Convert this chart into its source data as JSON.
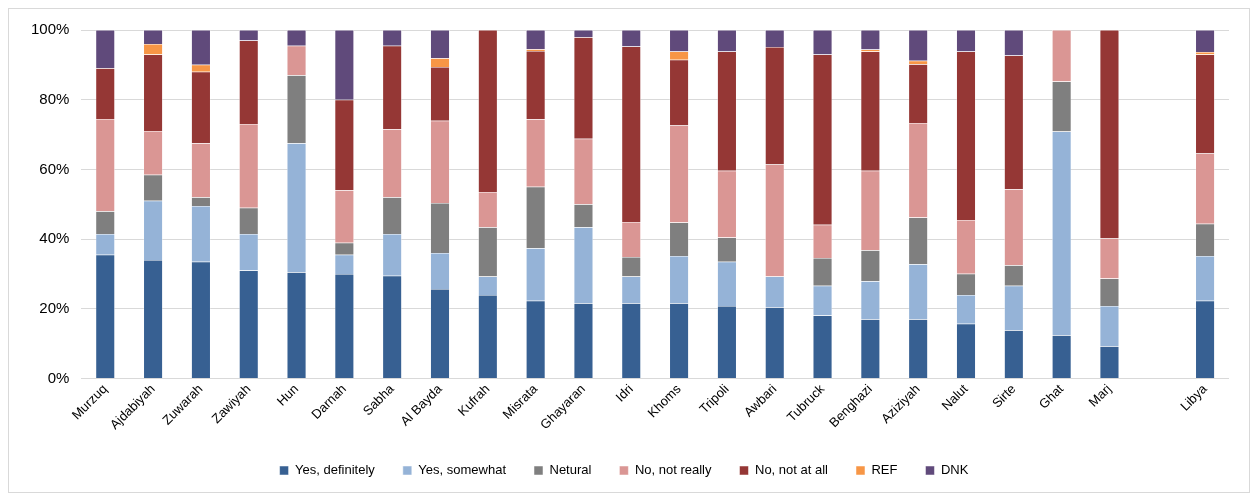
{
  "chart_data": {
    "type": "bar",
    "stacked": true,
    "categories": [
      "Murzuq",
      "Ajdabiyah",
      "Zuwarah",
      "Zawiyah",
      "Hun",
      "Darnah",
      "Sabha",
      "Al Bayda",
      "Kufrah",
      "Misrata",
      "Ghayaran",
      "Idri",
      "Khoms",
      "Tripoli",
      "Awbari",
      "Tubruck",
      "Benghazi",
      "Aziziyah",
      "Nalut",
      "Sirte",
      "Ghat",
      "Marj",
      null,
      "Libya"
    ],
    "series": [
      {
        "name": "Yes, definitely",
        "color": "#376092",
        "values": [
          35.5,
          34,
          33.5,
          31,
          30.5,
          30,
          29.5,
          25.7,
          24,
          22.3,
          21.6,
          21.6,
          21.6,
          20.8,
          20.5,
          18.1,
          17,
          17,
          15.7,
          13.9,
          12.4,
          9.3,
          null,
          22.3
        ]
      },
      {
        "name": "Yes, somewhat",
        "color": "#95b3d7",
        "values": [
          6,
          17,
          16,
          10.5,
          37,
          5.5,
          12,
          10.3,
          5.3,
          15.1,
          21.8,
          7.7,
          13.6,
          12.7,
          8.8,
          8.5,
          10.9,
          15.8,
          8.3,
          12.7,
          58.5,
          11.5,
          null,
          12.9
        ]
      },
      {
        "name": "Netural",
        "color": "#7f7f7f",
        "values": [
          6.5,
          7.5,
          2.5,
          7.5,
          19.5,
          3.5,
          10.5,
          14.4,
          14.1,
          17.6,
          6.6,
          5.6,
          9.6,
          7,
          0,
          8,
          8.9,
          13.4,
          6.1,
          5.9,
          14.3,
          7.9,
          null,
          9.2
        ]
      },
      {
        "name": "No, not really",
        "color": "#da9694",
        "values": [
          26.5,
          12.5,
          15.5,
          24,
          8.5,
          15,
          19.5,
          23.6,
          10.1,
          19.4,
          18.8,
          10,
          27.8,
          19.1,
          32.1,
          9.5,
          22.8,
          27.1,
          15.4,
          21.8,
          14.8,
          11.5,
          null,
          20.2
        ]
      },
      {
        "name": "No, not at all",
        "color": "#953735",
        "values": [
          14.5,
          22,
          20.5,
          24,
          0,
          26,
          24,
          15.4,
          46.5,
          19.6,
          29.1,
          50.4,
          18.9,
          34.2,
          33.7,
          48.9,
          34.2,
          16.9,
          48.3,
          38.4,
          0,
          59.8,
          null,
          28.4
        ]
      },
      {
        "name": "REF",
        "color": "#f79646",
        "values": [
          0,
          3,
          2,
          0,
          0,
          0,
          0,
          2.5,
          0,
          0.5,
          0,
          0,
          2.3,
          0,
          0,
          0,
          0.6,
          1,
          0,
          0,
          0,
          0,
          null,
          0.7
        ]
      },
      {
        "name": "DNK",
        "color": "#604a7b",
        "values": [
          11,
          4,
          10,
          3,
          4.5,
          20,
          4.5,
          8.1,
          0,
          5.5,
          2.1,
          4.7,
          6.2,
          6.2,
          4.9,
          7,
          5.6,
          8.8,
          6.2,
          7.3,
          0,
          0,
          null,
          6.3
        ]
      }
    ],
    "ylim": [
      0,
      100
    ],
    "yticks": [
      {
        "value": 0,
        "label": "0%"
      },
      {
        "value": 20,
        "label": "20%"
      },
      {
        "value": 40,
        "label": "40%"
      },
      {
        "value": 60,
        "label": "60%"
      },
      {
        "value": 80,
        "label": "80%"
      },
      {
        "value": 100,
        "label": "100%"
      }
    ],
    "grid": "y",
    "legend": "bottom"
  }
}
